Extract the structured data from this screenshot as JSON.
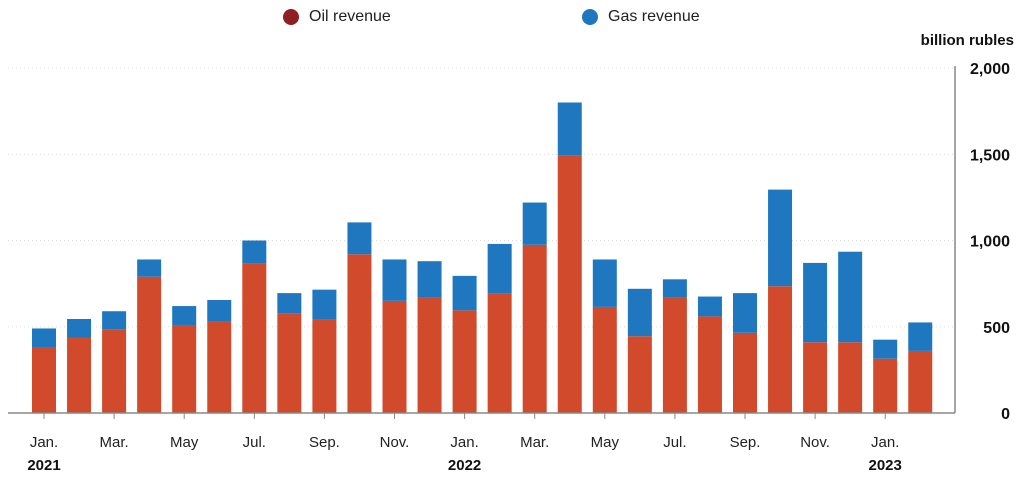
{
  "chart_data": {
    "type": "bar",
    "stacked": true,
    "unit_label": "billion rubles",
    "categories": [
      "Jan. 2021",
      "Feb. 2021",
      "Mar. 2021",
      "Apr. 2021",
      "May 2021",
      "Jun. 2021",
      "Jul. 2021",
      "Aug. 2021",
      "Sep. 2021",
      "Oct. 2021",
      "Nov. 2021",
      "Dec. 2021",
      "Jan. 2022",
      "Feb. 2022",
      "Mar. 2022",
      "Apr. 2022",
      "May 2022",
      "Jun. 2022",
      "Jul. 2022",
      "Aug. 2022",
      "Sep. 2022",
      "Oct. 2022",
      "Nov. 2022",
      "Dec. 2022",
      "Jan. 2023",
      "Feb. 2023"
    ],
    "series": [
      {
        "name": "Oil revenue",
        "color": "#d14a2b",
        "values": [
          380,
          435,
          485,
          790,
          510,
          530,
          865,
          575,
          540,
          920,
          650,
          670,
          595,
          695,
          975,
          1495,
          615,
          445,
          670,
          560,
          465,
          735,
          410,
          410,
          315,
          360
        ]
      },
      {
        "name": "Gas revenue",
        "color": "#1f77c0",
        "values": [
          110,
          110,
          105,
          100,
          110,
          125,
          135,
          120,
          175,
          185,
          240,
          210,
          200,
          285,
          245,
          305,
          275,
          275,
          105,
          115,
          230,
          560,
          460,
          525,
          110,
          165
        ]
      }
    ],
    "ylim": [
      0,
      2000
    ],
    "yticks": [
      {
        "value": 0,
        "label": "0"
      },
      {
        "value": 500,
        "label": "500"
      },
      {
        "value": 1000,
        "label": "1,000"
      },
      {
        "value": 1500,
        "label": "1,500"
      },
      {
        "value": 2000,
        "label": "2,000"
      }
    ],
    "xticks": [
      {
        "index": 0,
        "line1": "Jan.",
        "line2": "2021"
      },
      {
        "index": 2,
        "line1": "Mar.",
        "line2": ""
      },
      {
        "index": 4,
        "line1": "May",
        "line2": ""
      },
      {
        "index": 6,
        "line1": "Jul.",
        "line2": ""
      },
      {
        "index": 8,
        "line1": "Sep.",
        "line2": ""
      },
      {
        "index": 10,
        "line1": "Nov.",
        "line2": ""
      },
      {
        "index": 12,
        "line1": "Jan.",
        "line2": "2022"
      },
      {
        "index": 14,
        "line1": "Mar.",
        "line2": ""
      },
      {
        "index": 16,
        "line1": "May",
        "line2": ""
      },
      {
        "index": 18,
        "line1": "Jul.",
        "line2": ""
      },
      {
        "index": 20,
        "line1": "Sep.",
        "line2": ""
      },
      {
        "index": 22,
        "line1": "Nov.",
        "line2": ""
      },
      {
        "index": 24,
        "line1": "Jan.",
        "line2": "2023"
      }
    ],
    "legend": [
      "Oil revenue",
      "Gas revenue"
    ],
    "legend_position": "top-center",
    "y_axis_side": "right",
    "grid": true
  }
}
